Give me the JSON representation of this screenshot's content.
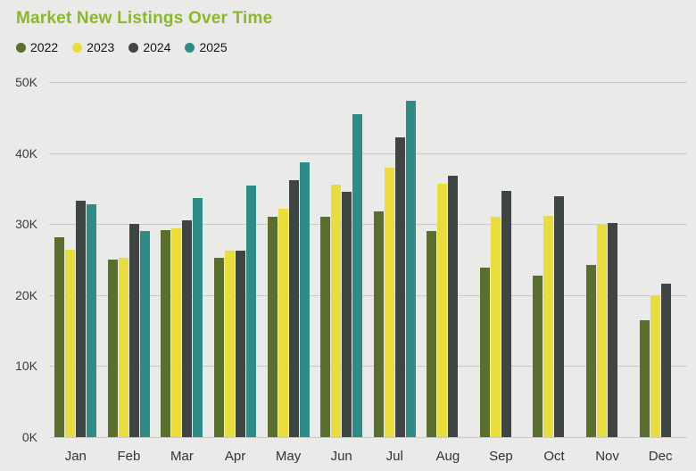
{
  "chart_data": {
    "type": "bar",
    "title": "Market New Listings Over Time",
    "categories": [
      "Jan",
      "Feb",
      "Mar",
      "Apr",
      "May",
      "Jun",
      "Jul",
      "Aug",
      "Sep",
      "Oct",
      "Nov",
      "Dec"
    ],
    "series": [
      {
        "name": "2022",
        "color": "#5A6E2E",
        "values": [
          28.2,
          25.0,
          29.1,
          25.3,
          31.0,
          31.0,
          31.8,
          29.0,
          23.9,
          22.7,
          24.3,
          16.5
        ]
      },
      {
        "name": "2023",
        "color": "#E8DD3C",
        "values": [
          26.4,
          25.2,
          29.4,
          26.3,
          32.2,
          35.6,
          38.0,
          35.7,
          31.0,
          31.1,
          30.0,
          20.0
        ]
      },
      {
        "name": "2024",
        "color": "#3E4542",
        "values": [
          33.3,
          30.0,
          30.5,
          26.2,
          36.2,
          34.5,
          42.2,
          36.8,
          34.7,
          33.9,
          30.1,
          21.6
        ]
      },
      {
        "name": "2025",
        "color": "#2E8B85",
        "values": [
          32.8,
          29.0,
          33.7,
          35.4,
          38.7,
          45.5,
          47.4,
          null,
          null,
          null,
          null,
          null
        ]
      }
    ],
    "ylabel": "",
    "xlabel": "",
    "ylim": [
      0,
      50
    ],
    "yticks": [
      "0K",
      "10K",
      "20K",
      "30K",
      "40K",
      "50K"
    ],
    "grid": true,
    "legend_position": "top-left",
    "units": "thousands of listings"
  },
  "colors": {
    "background": "#EAEAE8",
    "title": "#8CB72C",
    "gridline": "#C9C9C7",
    "axis_text": "#3C3C3C"
  }
}
